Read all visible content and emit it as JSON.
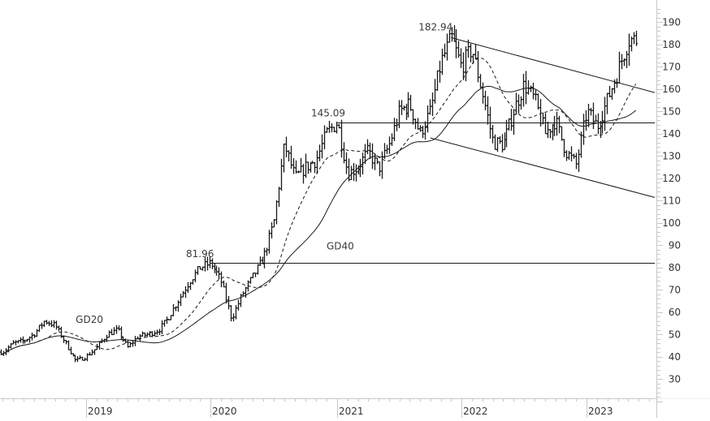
{
  "chart_data": {
    "type": "ohlc",
    "title": "",
    "frequency": "weekly",
    "xlabel": "",
    "ylabel": "",
    "ylim": [
      20,
      195
    ],
    "y_ticks": [
      30,
      40,
      50,
      60,
      70,
      80,
      90,
      100,
      110,
      120,
      130,
      140,
      150,
      160,
      170,
      180,
      190
    ],
    "x_ticks": [
      "2019",
      "2020",
      "2021",
      "2022",
      "2023"
    ],
    "grid": false,
    "legend": null,
    "price_path": [
      {
        "date": "2018-05",
        "price": 42
      },
      {
        "date": "2018-06",
        "price": 46
      },
      {
        "date": "2018-07",
        "price": 47
      },
      {
        "date": "2018-08",
        "price": 50
      },
      {
        "date": "2018-09",
        "price": 56
      },
      {
        "date": "2018-10",
        "price": 54
      },
      {
        "date": "2018-11",
        "price": 46
      },
      {
        "date": "2018-12",
        "price": 38
      },
      {
        "date": "2019-01",
        "price": 40
      },
      {
        "date": "2019-02",
        "price": 44
      },
      {
        "date": "2019-03",
        "price": 50
      },
      {
        "date": "2019-04",
        "price": 52
      },
      {
        "date": "2019-05",
        "price": 44
      },
      {
        "date": "2019-06",
        "price": 49
      },
      {
        "date": "2019-07",
        "price": 50
      },
      {
        "date": "2019-08",
        "price": 52
      },
      {
        "date": "2019-09",
        "price": 58
      },
      {
        "date": "2019-10",
        "price": 66
      },
      {
        "date": "2019-11",
        "price": 74
      },
      {
        "date": "2019-12",
        "price": 80
      },
      {
        "date": "2020-01",
        "price": 81.96
      },
      {
        "date": "2020-02",
        "price": 74
      },
      {
        "date": "2020-03",
        "price": 57
      },
      {
        "date": "2020-04",
        "price": 68
      },
      {
        "date": "2020-05",
        "price": 76
      },
      {
        "date": "2020-06",
        "price": 84
      },
      {
        "date": "2020-07",
        "price": 100
      },
      {
        "date": "2020-08",
        "price": 135
      },
      {
        "date": "2020-09",
        "price": 120
      },
      {
        "date": "2020-10",
        "price": 125
      },
      {
        "date": "2020-11",
        "price": 128
      },
      {
        "date": "2020-12",
        "price": 140
      },
      {
        "date": "2021-01",
        "price": 145.09
      },
      {
        "date": "2021-02",
        "price": 122
      },
      {
        "date": "2021-03",
        "price": 125
      },
      {
        "date": "2021-04",
        "price": 132
      },
      {
        "date": "2021-05",
        "price": 124
      },
      {
        "date": "2021-06",
        "price": 135
      },
      {
        "date": "2021-07",
        "price": 150
      },
      {
        "date": "2021-08",
        "price": 153
      },
      {
        "date": "2021-09",
        "price": 140
      },
      {
        "date": "2021-10",
        "price": 150
      },
      {
        "date": "2021-11",
        "price": 172
      },
      {
        "date": "2021-12",
        "price": 182.94
      },
      {
        "date": "2022-01",
        "price": 170
      },
      {
        "date": "2022-02",
        "price": 178
      },
      {
        "date": "2022-03",
        "price": 158
      },
      {
        "date": "2022-04",
        "price": 136
      },
      {
        "date": "2022-05",
        "price": 135
      },
      {
        "date": "2022-06",
        "price": 150
      },
      {
        "date": "2022-07",
        "price": 162
      },
      {
        "date": "2022-08",
        "price": 155
      },
      {
        "date": "2022-09",
        "price": 140
      },
      {
        "date": "2022-10",
        "price": 146
      },
      {
        "date": "2022-11",
        "price": 132
      },
      {
        "date": "2022-12",
        "price": 126
      },
      {
        "date": "2023-01",
        "price": 150
      },
      {
        "date": "2023-02",
        "price": 143
      },
      {
        "date": "2023-03",
        "price": 155
      },
      {
        "date": "2023-04",
        "price": 168
      },
      {
        "date": "2023-05",
        "price": 182
      }
    ],
    "series": [
      {
        "name": "Price (weekly OHLC bars)",
        "style": "ohlc"
      },
      {
        "name": "GD20",
        "style": "dashed",
        "description": "20-period moving average"
      },
      {
        "name": "GD40",
        "style": "solid",
        "description": "40-period moving average"
      }
    ],
    "horizontal_lines": [
      {
        "value": 81.96,
        "label": "81.96",
        "from": "2020-01"
      },
      {
        "value": 145.09,
        "label": "145.09",
        "from": "2021-01"
      }
    ],
    "trendlines": [
      {
        "name": "channel-upper",
        "from": {
          "date": "2021-12",
          "value": 182.94
        },
        "to": {
          "date": "2023-07",
          "value": 159
        }
      },
      {
        "name": "channel-lower",
        "from": {
          "date": "2021-10",
          "value": 138
        },
        "to": {
          "date": "2023-07",
          "value": 112
        }
      }
    ],
    "annotations": [
      {
        "text": "182.94",
        "date": "2021-12",
        "value": 182.94
      },
      {
        "text": "145.09",
        "date": "2021-01",
        "value": 145.09
      },
      {
        "text": "81.96",
        "date": "2020-01",
        "value": 81.96
      },
      {
        "text": "GD20",
        "date": "2018-12",
        "value": 53
      },
      {
        "text": "GD40",
        "date": "2020-12",
        "value": 88
      }
    ]
  },
  "style": {
    "line_color": "#1a1a1a",
    "axis_color": "#c8c8c8",
    "label_color": "#333333",
    "annotation_color": "#3a3a3a",
    "background": "#ffffff"
  }
}
